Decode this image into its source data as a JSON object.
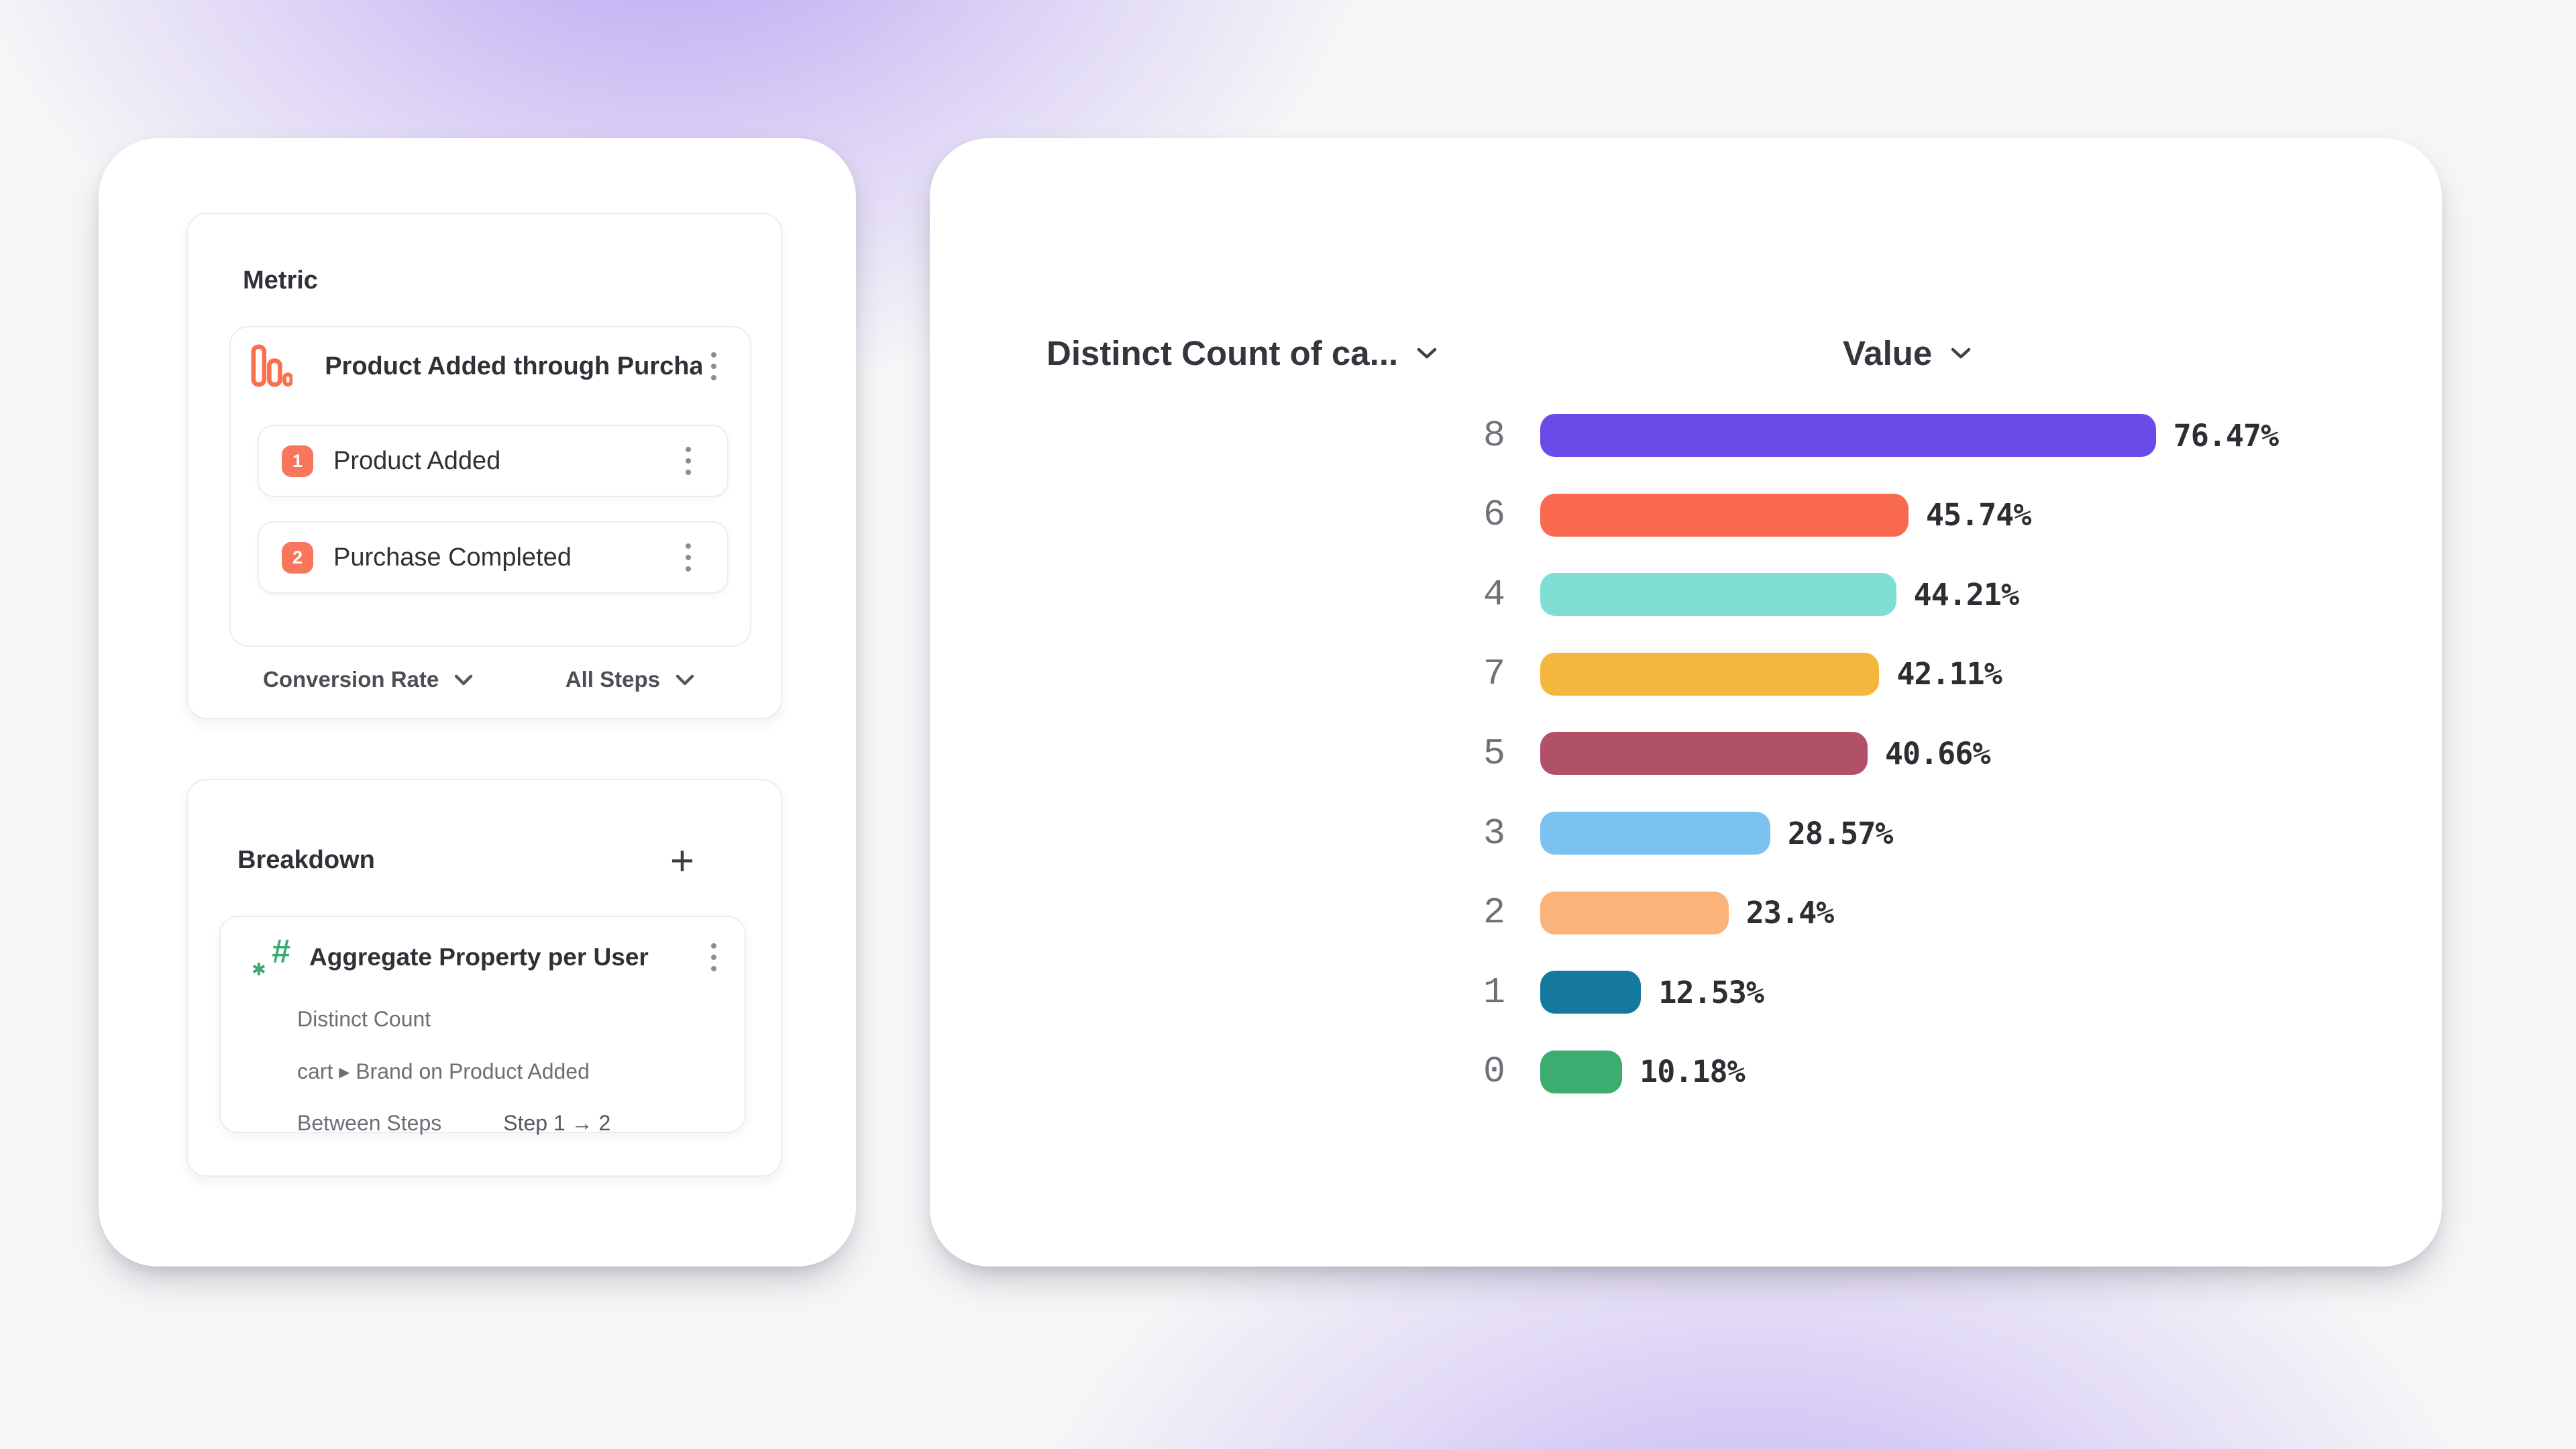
{
  "left_panel": {
    "metric": {
      "title": "Metric",
      "funnel": {
        "name": "Product Added through Purcha...",
        "steps": [
          {
            "number": "1",
            "label": "Product Added"
          },
          {
            "number": "2",
            "label": "Purchase Completed"
          }
        ]
      },
      "footer": {
        "measure": "Conversion Rate",
        "scope": "All Steps"
      }
    },
    "breakdown": {
      "title": "Breakdown",
      "add_label": "+",
      "item": {
        "title": "Aggregate Property per User",
        "aggregation": "Distinct Count",
        "property": "cart ▸ Brand on Product Added",
        "between_label": "Between Steps",
        "between_value": "Step 1 → 2"
      }
    }
  },
  "chart_data": {
    "type": "bar",
    "orientation": "horizontal",
    "column_headers": [
      "Distinct Count of ca...",
      "Value"
    ],
    "categories": [
      "8",
      "6",
      "4",
      "7",
      "5",
      "3",
      "2",
      "1",
      "0"
    ],
    "values": [
      76.47,
      45.74,
      44.21,
      42.11,
      40.66,
      28.57,
      23.4,
      12.53,
      10.18
    ],
    "value_labels": [
      "76.47%",
      "45.74%",
      "44.21%",
      "42.11%",
      "40.66%",
      "28.57%",
      "23.4%",
      "12.53%",
      "10.18%"
    ],
    "colors": [
      "#6a4be8",
      "#f9694f",
      "#7fded4",
      "#f5b63e",
      "#b05167",
      "#7cc2f1",
      "#fbb37c",
      "#15799e",
      "#3bad70"
    ],
    "unit": "%",
    "xlim": [
      0,
      100
    ],
    "grid": false,
    "legend": false
  }
}
